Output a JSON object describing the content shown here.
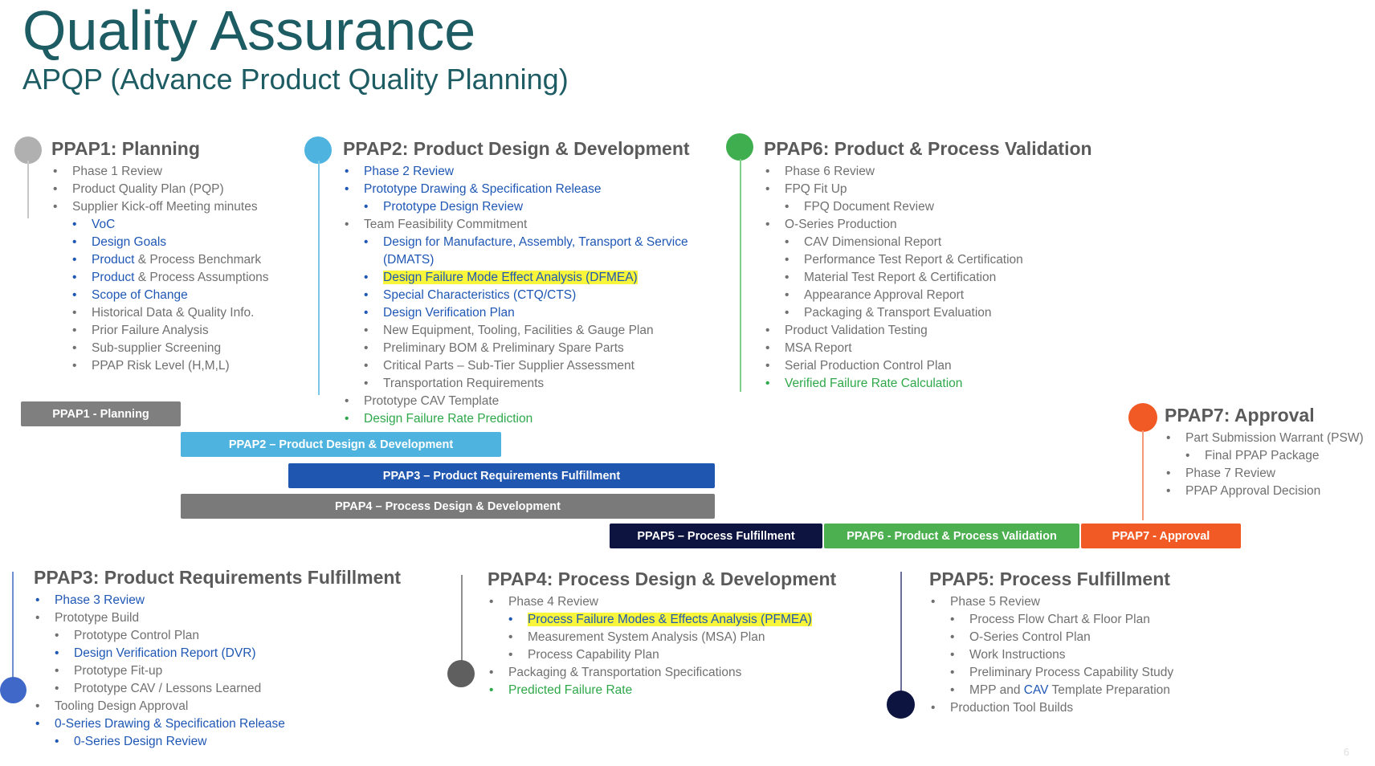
{
  "header": {
    "title": "Quality Assurance",
    "subtitle": "APQP (Advance Product Quality Planning)"
  },
  "colors": {
    "teal_title": "#1d5c63",
    "ppap1": "#b0b0b0",
    "ppap2": "#4fb3e0",
    "ppap3": "#1f56b0",
    "ppap4": "#6c6c6c",
    "ppap5": "#0d1440",
    "ppap6": "#3fae4f",
    "ppap7": "#f15a24",
    "highlight": "#f8f53a"
  },
  "sections": {
    "ppap1": {
      "title": "PPAP1: Planning",
      "items": [
        {
          "text": "Phase 1 Review",
          "level": 1,
          "color": "gray"
        },
        {
          "text": "Product Quality Plan (PQP)",
          "level": 1,
          "color": "gray"
        },
        {
          "text": "Supplier Kick-off Meeting minutes",
          "level": 1,
          "color": "gray"
        },
        {
          "text": "VoC",
          "level": 2,
          "color": "blue"
        },
        {
          "text": "Design Goals",
          "level": 2,
          "color": "blue"
        },
        {
          "text": "Product",
          "rest": " & Process Benchmark",
          "level": 2,
          "color": "mixed"
        },
        {
          "text": "Product",
          "rest": " & Process Assumptions",
          "level": 2,
          "color": "mixed"
        },
        {
          "text": "Scope of Change",
          "level": 2,
          "color": "blue"
        },
        {
          "text": "Historical Data & Quality Info.",
          "level": 2,
          "color": "gray"
        },
        {
          "text": "Prior Failure Analysis",
          "level": 2,
          "color": "gray"
        },
        {
          "text": "Sub-supplier Screening",
          "level": 2,
          "color": "gray"
        },
        {
          "text": "PPAP Risk Level (H,M,L)",
          "level": 2,
          "color": "gray"
        }
      ]
    },
    "ppap2": {
      "title": "PPAP2:  Product Design & Development",
      "items": [
        {
          "text": "Phase 2 Review",
          "level": 1,
          "color": "blue"
        },
        {
          "text": "Prototype Drawing & Specification Release",
          "level": 1,
          "color": "blue"
        },
        {
          "text": "Prototype Design Review",
          "level": 2,
          "color": "blue"
        },
        {
          "text": "Team Feasibility Commitment",
          "level": 1,
          "color": "gray"
        },
        {
          "text": "Design for Manufacture, Assembly, Transport & Service",
          "level": 2,
          "color": "blue"
        },
        {
          "text": "(DMATS)",
          "level": 2,
          "color": "blue",
          "nobullet": true
        },
        {
          "text": "Design Failure Mode Effect Analysis (DFMEA)",
          "level": 2,
          "color": "blue",
          "highlight": true
        },
        {
          "text": "Special Characteristics (CTQ/CTS)",
          "level": 2,
          "color": "blue"
        },
        {
          "text": "Design Verification Plan",
          "level": 2,
          "color": "blue"
        },
        {
          "text": "New Equipment, Tooling, Facilities & Gauge Plan",
          "level": 2,
          "color": "gray"
        },
        {
          "text": "Preliminary BOM & Preliminary Spare Parts",
          "level": 2,
          "color": "gray"
        },
        {
          "text": "Critical Parts – Sub-Tier Supplier Assessment",
          "level": 2,
          "color": "gray"
        },
        {
          "text": "Transportation Requirements",
          "level": 2,
          "color": "gray"
        },
        {
          "text": "Prototype CAV Template",
          "level": 1,
          "color": "gray"
        },
        {
          "text": "Design Failure Rate Prediction",
          "level": 1,
          "color": "green"
        }
      ]
    },
    "ppap6": {
      "title": "PPAP6: Product & Process Validation",
      "items": [
        {
          "text": "Phase 6 Review",
          "level": 1,
          "color": "gray"
        },
        {
          "text": "FPQ Fit Up",
          "level": 1,
          "color": "gray"
        },
        {
          "text": "FPQ Document Review",
          "level": 2,
          "color": "gray"
        },
        {
          "text": "O-Series Production",
          "level": 1,
          "color": "gray"
        },
        {
          "text": "CAV Dimensional Report",
          "level": 2,
          "color": "gray"
        },
        {
          "text": "Performance Test Report & Certification",
          "level": 2,
          "color": "gray"
        },
        {
          "text": "Material Test Report & Certification",
          "level": 2,
          "color": "gray"
        },
        {
          "text": "Appearance Approval Report",
          "level": 2,
          "color": "gray"
        },
        {
          "text": "Packaging & Transport Evaluation",
          "level": 2,
          "color": "gray"
        },
        {
          "text": "Product Validation Testing",
          "level": 1,
          "color": "gray"
        },
        {
          "text": "MSA Report",
          "level": 1,
          "color": "gray"
        },
        {
          "text": "Serial Production Control Plan",
          "level": 1,
          "color": "gray"
        },
        {
          "text": "Verified Failure Rate Calculation",
          "level": 1,
          "color": "green"
        }
      ]
    },
    "ppap7": {
      "title": "PPAP7: Approval",
      "items": [
        {
          "text": "Part Submission Warrant (PSW)",
          "level": 1,
          "color": "gray"
        },
        {
          "text": "Final PPAP Package",
          "level": 2,
          "color": "gray"
        },
        {
          "text": "Phase 7 Review",
          "level": 1,
          "color": "gray"
        },
        {
          "text": "PPAP Approval Decision",
          "level": 1,
          "color": "gray"
        }
      ]
    },
    "ppap3": {
      "title": "PPAP3: Product Requirements Fulfillment",
      "items": [
        {
          "text": "Phase 3 Review",
          "level": 1,
          "color": "blue"
        },
        {
          "text": "Prototype Build",
          "level": 1,
          "color": "gray"
        },
        {
          "text": "Prototype Control Plan",
          "level": 2,
          "color": "gray"
        },
        {
          "text": "Design Verification Report (DVR)",
          "level": 2,
          "color": "blue"
        },
        {
          "text": "Prototype Fit-up",
          "level": 2,
          "color": "gray"
        },
        {
          "text": "Prototype CAV / Lessons Learned",
          "level": 2,
          "color": "gray"
        },
        {
          "text": "Tooling Design Approval",
          "level": 1,
          "color": "gray"
        },
        {
          "text": "0-Series Drawing & Specification Release",
          "level": 1,
          "color": "blue"
        },
        {
          "text": "0-Series Design Review",
          "level": 2,
          "color": "blue"
        }
      ]
    },
    "ppap4": {
      "title": "PPAP4: Process Design & Development",
      "items": [
        {
          "text": "Phase 4 Review",
          "level": 1,
          "color": "gray"
        },
        {
          "text": "Process Failure Modes & Effects Analysis (PFMEA)",
          "level": 2,
          "color": "blue",
          "highlight": true
        },
        {
          "text": "Measurement System Analysis (MSA) Plan",
          "level": 2,
          "color": "gray"
        },
        {
          "text": "Process Capability Plan",
          "level": 2,
          "color": "gray"
        },
        {
          "text": "Packaging & Transportation Specifications",
          "level": 1,
          "color": "gray"
        },
        {
          "text": "Predicted Failure Rate",
          "level": 1,
          "color": "green"
        }
      ]
    },
    "ppap5": {
      "title": "PPAP5: Process Fulfillment",
      "items": [
        {
          "text": "Phase 5 Review",
          "level": 1,
          "color": "gray"
        },
        {
          "text": "Process Flow Chart & Floor Plan",
          "level": 2,
          "color": "gray"
        },
        {
          "text": "O-Series Control Plan",
          "level": 2,
          "color": "gray"
        },
        {
          "text": "Work Instructions",
          "level": 2,
          "color": "gray"
        },
        {
          "text": "Preliminary Process Capability  Study",
          "level": 2,
          "color": "gray"
        },
        {
          "text": "MPP and ",
          "rest2": "CAV",
          "rest3": " Template Preparation",
          "level": 2,
          "color": "cav"
        },
        {
          "text": "Production Tool Builds",
          "level": 1,
          "color": "gray"
        }
      ]
    }
  },
  "timeline": {
    "bars": [
      {
        "label": "PPAP1  - Planning",
        "color": "#7f7f7f"
      },
      {
        "label": "PPAP2 – Product Design & Development",
        "color": "#4fb3e0"
      },
      {
        "label": "PPAP3 – Product Requirements Fulfillment",
        "color": "#1f56b0"
      },
      {
        "label": "PPAP4 – Process Design & Development",
        "color": "#7a7a7a"
      },
      {
        "label": "PPAP5 – Process Fulfillment",
        "color": "#0d1440"
      },
      {
        "label": "PPAP6 - Product & Process Validation",
        "color": "#4caf50"
      },
      {
        "label": "PPAP7 - Approval",
        "color": "#f15a24"
      }
    ]
  },
  "page_number": "6"
}
